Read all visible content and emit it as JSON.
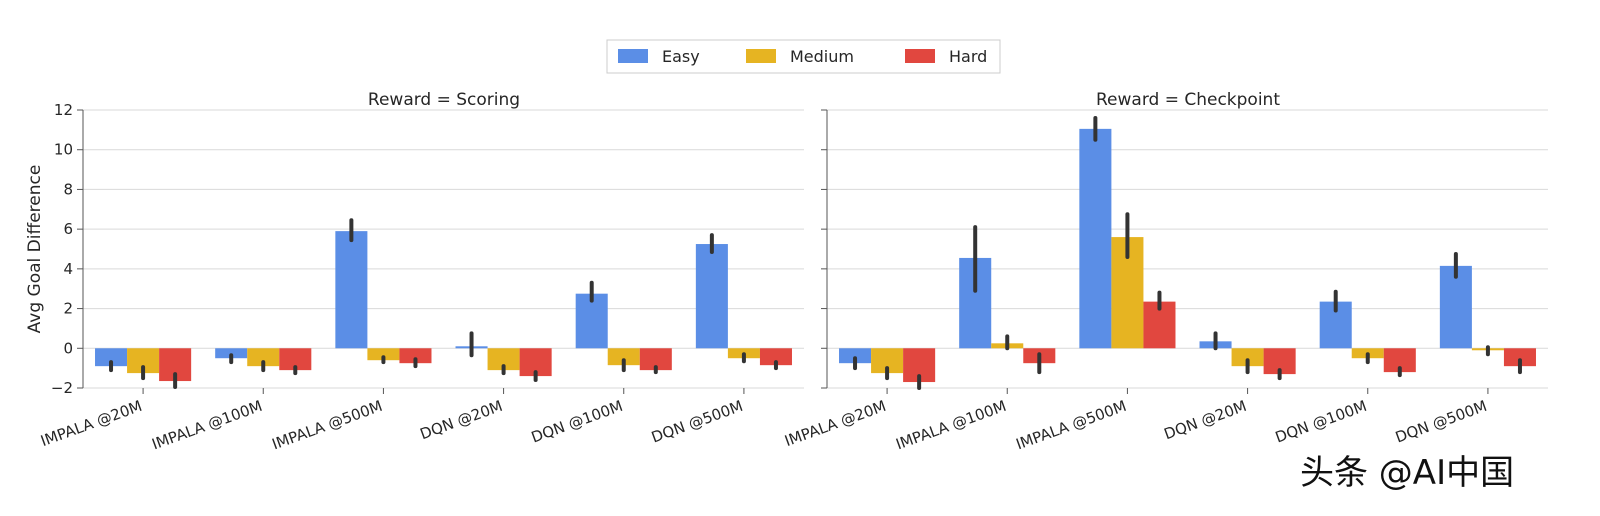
{
  "chart_data": {
    "type": "bar",
    "ylabel": "Avg Goal Difference",
    "ylim": [
      -2,
      12
    ],
    "yticks": [
      -2,
      0,
      2,
      4,
      6,
      8,
      10,
      12
    ],
    "ytick_labels": [
      "−2",
      "0",
      "2",
      "4",
      "6",
      "8",
      "10",
      "12"
    ],
    "grid": true,
    "legend_position": "top-center",
    "categories": [
      "IMPALA @20M",
      "IMPALA @100M",
      "IMPALA @500M",
      "DQN @20M",
      "DQN @100M",
      "DQN @500M"
    ],
    "series_colors": [
      "#5b8ee6",
      "#e6b422",
      "#e1473f"
    ],
    "legend": [
      "Easy",
      "Medium",
      "Hard"
    ],
    "panels": [
      {
        "title": "Reward = Scoring",
        "series": [
          {
            "name": "Easy",
            "values": [
              -0.9,
              -0.5,
              5.9,
              0.1,
              2.75,
              5.25
            ],
            "err_low": [
              -1.1,
              -0.7,
              5.45,
              -0.35,
              2.4,
              4.85
            ],
            "err_high": [
              -0.7,
              -0.35,
              6.45,
              0.75,
              3.3,
              5.7
            ]
          },
          {
            "name": "Medium",
            "values": [
              -1.25,
              -0.9,
              -0.6,
              -1.1,
              -0.85,
              -0.5
            ],
            "err_low": [
              -1.5,
              -1.1,
              -0.7,
              -1.25,
              -1.1,
              -0.65
            ],
            "err_high": [
              -0.95,
              -0.7,
              -0.45,
              -0.9,
              -0.6,
              -0.3
            ]
          },
          {
            "name": "Hard",
            "values": [
              -1.65,
              -1.1,
              -0.75,
              -1.4,
              -1.1,
              -0.85
            ],
            "err_low": [
              -1.95,
              -1.25,
              -0.9,
              -1.6,
              -1.2,
              -1.0
            ],
            "err_high": [
              -1.3,
              -0.95,
              -0.55,
              -1.2,
              -0.95,
              -0.7
            ]
          }
        ]
      },
      {
        "title": "Reward = Checkpoint",
        "series": [
          {
            "name": "Easy",
            "values": [
              -0.75,
              4.55,
              11.05,
              0.35,
              2.35,
              4.15
            ],
            "err_low": [
              -1.0,
              2.9,
              10.5,
              0.0,
              1.9,
              3.6
            ],
            "err_high": [
              -0.5,
              6.1,
              11.6,
              0.75,
              2.85,
              4.75
            ]
          },
          {
            "name": "Medium",
            "values": [
              -1.25,
              0.25,
              5.6,
              -0.9,
              -0.5,
              -0.1
            ],
            "err_low": [
              -1.5,
              0.0,
              4.6,
              -1.2,
              -0.7,
              -0.3
            ],
            "err_high": [
              -1.0,
              0.6,
              6.75,
              -0.6,
              -0.3,
              0.05
            ]
          },
          {
            "name": "Hard",
            "values": [
              -1.7,
              -0.75,
              2.35,
              -1.3,
              -1.2,
              -0.9
            ],
            "err_low": [
              -2.0,
              -1.2,
              2.0,
              -1.5,
              -1.35,
              -1.2
            ],
            "err_high": [
              -1.4,
              -0.3,
              2.8,
              -1.1,
              -1.0,
              -0.6
            ]
          }
        ]
      }
    ]
  },
  "watermark": "头条 @AI中国"
}
